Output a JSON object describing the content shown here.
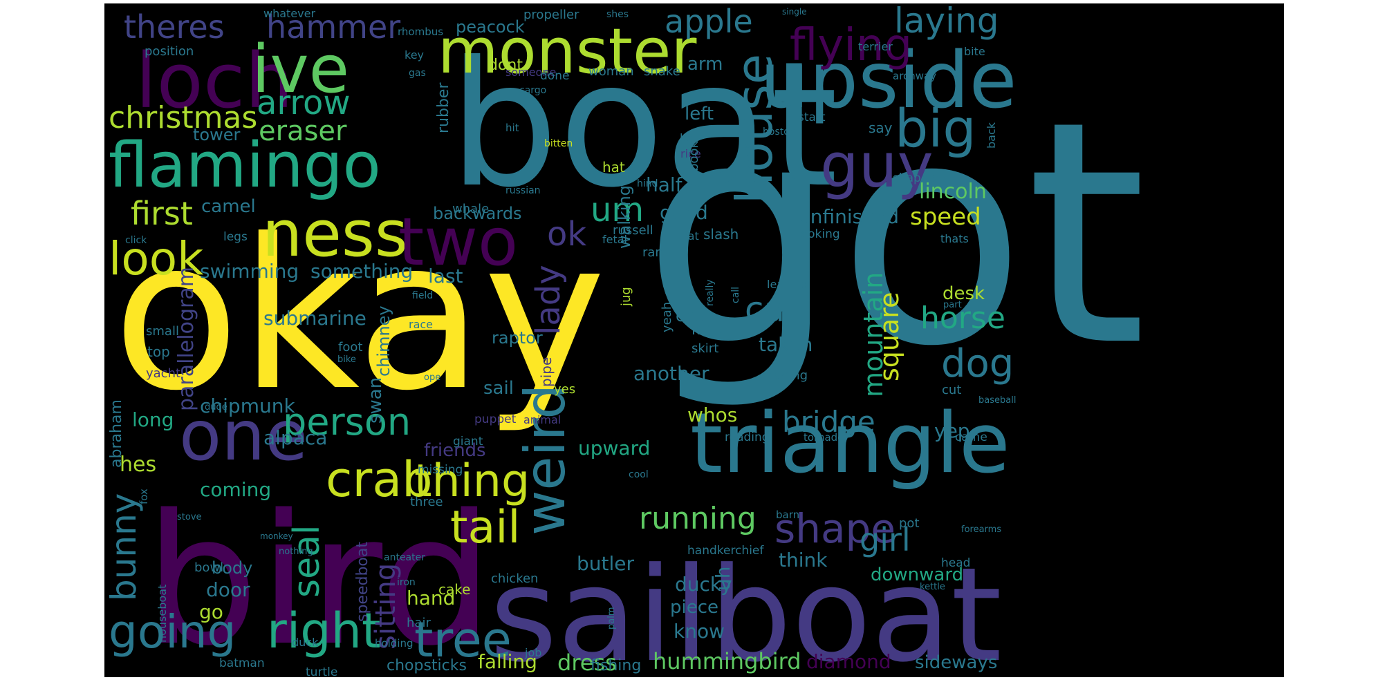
{
  "word_cloud": {
    "background": "#000000",
    "words": [
      {
        "text": "got",
        "color": "#2a788e"
      },
      {
        "text": "boat",
        "color": "#2a788e"
      },
      {
        "text": "okay",
        "color": "#fde725"
      },
      {
        "text": "bird",
        "color": "#440154"
      },
      {
        "text": "sailboat",
        "color": "#443a83"
      },
      {
        "text": "triangle",
        "color": "#2a788e"
      },
      {
        "text": "upside",
        "color": "#2a788e"
      },
      {
        "text": "monster",
        "color": "#addc30"
      },
      {
        "text": "flamingo",
        "color": "#22a884"
      },
      {
        "text": "loch",
        "color": "#440154"
      },
      {
        "text": "ive",
        "color": "#5ec962"
      },
      {
        "text": "ness",
        "color": "#c8e020"
      },
      {
        "text": "two",
        "color": "#440154"
      },
      {
        "text": "one",
        "color": "#443a83"
      },
      {
        "text": "guy",
        "color": "#443a83"
      },
      {
        "text": "house",
        "color": "#2a788e"
      },
      {
        "text": "weird",
        "color": "#2a788e"
      },
      {
        "text": "big",
        "color": "#2a788e"
      },
      {
        "text": "crab",
        "color": "#c8e020"
      },
      {
        "text": "thing",
        "color": "#c8e020"
      },
      {
        "text": "tail",
        "color": "#c8e020"
      },
      {
        "text": "right",
        "color": "#22a884"
      },
      {
        "text": "tree",
        "color": "#2a788e"
      },
      {
        "text": "going",
        "color": "#2a788e"
      },
      {
        "text": "person",
        "color": "#22a884"
      },
      {
        "text": "look",
        "color": "#c8e020"
      },
      {
        "text": "flying",
        "color": "#440154"
      },
      {
        "text": "apple",
        "color": "#2a788e"
      },
      {
        "text": "laying",
        "color": "#2a788e"
      },
      {
        "text": "theres",
        "color": "#414487"
      },
      {
        "text": "hammer",
        "color": "#414487"
      },
      {
        "text": "arrow",
        "color": "#22a884"
      },
      {
        "text": "christmas",
        "color": "#addc30"
      },
      {
        "text": "eraser",
        "color": "#5ec962"
      },
      {
        "text": "first",
        "color": "#addc30"
      },
      {
        "text": "um",
        "color": "#22a884"
      },
      {
        "text": "ok",
        "color": "#443a83"
      },
      {
        "text": "lady",
        "color": "#443a83"
      },
      {
        "text": "cat",
        "color": "#2a788e"
      },
      {
        "text": "dog",
        "color": "#2a788e"
      },
      {
        "text": "horse",
        "color": "#22a884"
      },
      {
        "text": "mountain",
        "color": "#22a884"
      },
      {
        "text": "square",
        "color": "#c8e020"
      },
      {
        "text": "shape",
        "color": "#443a83"
      },
      {
        "text": "running",
        "color": "#5ec962"
      },
      {
        "text": "girl",
        "color": "#2a788e"
      },
      {
        "text": "bridge",
        "color": "#2a788e"
      },
      {
        "text": "bunny",
        "color": "#2a788e"
      },
      {
        "text": "seal",
        "color": "#22a884"
      },
      {
        "text": "sitting",
        "color": "#443a83"
      },
      {
        "text": "dress",
        "color": "#5ec962"
      },
      {
        "text": "hummingbird",
        "color": "#5ec962"
      },
      {
        "text": "speed",
        "color": "#c8e020"
      },
      {
        "text": "unfinished",
        "color": "#2a788e"
      },
      {
        "text": "lincoln",
        "color": "#5ec962"
      },
      {
        "text": "good",
        "color": "#2a788e"
      },
      {
        "text": "half",
        "color": "#2a788e"
      },
      {
        "text": "walking",
        "color": "#2a788e"
      },
      {
        "text": "left",
        "color": "#2a788e"
      },
      {
        "text": "arm",
        "color": "#2a788e"
      },
      {
        "text": "camel",
        "color": "#2a788e"
      },
      {
        "text": "backwards",
        "color": "#2a788e"
      },
      {
        "text": "swimming",
        "color": "#2a788e"
      },
      {
        "text": "something",
        "color": "#2a788e"
      },
      {
        "text": "last",
        "color": "#2a788e"
      },
      {
        "text": "parallelogram",
        "color": "#414487"
      },
      {
        "text": "submarine",
        "color": "#2a788e"
      },
      {
        "text": "chimney",
        "color": "#2a788e"
      },
      {
        "text": "chipmunk",
        "color": "#2a788e"
      },
      {
        "text": "alpaca",
        "color": "#2a788e"
      },
      {
        "text": "friends",
        "color": "#443a83"
      },
      {
        "text": "long",
        "color": "#22a884"
      },
      {
        "text": "hes",
        "color": "#addc30"
      },
      {
        "text": "coming",
        "color": "#22a884"
      },
      {
        "text": "abraham",
        "color": "#2a788e"
      },
      {
        "text": "raptor",
        "color": "#2a788e"
      },
      {
        "text": "swan",
        "color": "#2a788e"
      },
      {
        "text": "sail",
        "color": "#2a788e"
      },
      {
        "text": "another",
        "color": "#2a788e"
      },
      {
        "text": "upward",
        "color": "#22a884"
      },
      {
        "text": "whos",
        "color": "#addc30"
      },
      {
        "text": "taken",
        "color": "#2a788e"
      },
      {
        "text": "desk",
        "color": "#addc30"
      },
      {
        "text": "yep",
        "color": "#2a788e"
      },
      {
        "text": "think",
        "color": "#2a788e"
      },
      {
        "text": "downward",
        "color": "#22a884"
      },
      {
        "text": "sideways",
        "color": "#2a788e"
      },
      {
        "text": "diamond",
        "color": "#440154"
      },
      {
        "text": "butler",
        "color": "#2a788e"
      },
      {
        "text": "ducky",
        "color": "#2a788e"
      },
      {
        "text": "piece",
        "color": "#2a788e"
      },
      {
        "text": "know",
        "color": "#2a788e"
      },
      {
        "text": "uh",
        "color": "#2a788e"
      },
      {
        "text": "hand",
        "color": "#addc30"
      },
      {
        "text": "speedboat",
        "color": "#414487"
      },
      {
        "text": "door",
        "color": "#2a788e"
      },
      {
        "text": "go",
        "color": "#addc30"
      },
      {
        "text": "body",
        "color": "#2a788e"
      },
      {
        "text": "falling",
        "color": "#addc30"
      },
      {
        "text": "fishing",
        "color": "#2a788e"
      },
      {
        "text": "chopsticks",
        "color": "#2a788e"
      },
      {
        "text": "peacock",
        "color": "#2a788e"
      },
      {
        "text": "propeller",
        "color": "#2a788e"
      },
      {
        "text": "dont",
        "color": "#addc30"
      },
      {
        "text": "rubber",
        "color": "#2a788e"
      },
      {
        "text": "tower",
        "color": "#2a788e"
      },
      {
        "text": "whale",
        "color": "#2a788e"
      },
      {
        "text": "position",
        "color": "#2a788e"
      },
      {
        "text": "key",
        "color": "#2a788e"
      },
      {
        "text": "whatever",
        "color": "#2a788e"
      },
      {
        "text": "rhombus",
        "color": "#2a788e"
      },
      {
        "text": "shes",
        "color": "#2a788e"
      },
      {
        "text": "single",
        "color": "#2a788e"
      },
      {
        "text": "someone",
        "color": "#443a83"
      },
      {
        "text": "done",
        "color": "#2a788e"
      },
      {
        "text": "woman",
        "color": "#2a788e"
      },
      {
        "text": "snake",
        "color": "#2a788e"
      },
      {
        "text": "gas",
        "color": "#2a788e"
      },
      {
        "text": "cargo",
        "color": "#2a788e"
      },
      {
        "text": "terrier",
        "color": "#2a788e"
      },
      {
        "text": "bite",
        "color": "#2a788e"
      },
      {
        "text": "archway",
        "color": "#2a788e"
      },
      {
        "text": "start",
        "color": "#2a788e"
      },
      {
        "text": "hit",
        "color": "#2a788e"
      },
      {
        "text": "bitten",
        "color": "#c8e020"
      },
      {
        "text": "let",
        "color": "#2a788e"
      },
      {
        "text": "rice",
        "color": "#443a83"
      },
      {
        "text": "say",
        "color": "#2a788e"
      },
      {
        "text": "boston",
        "color": "#2a788e"
      },
      {
        "text": "back",
        "color": "#2a788e"
      },
      {
        "text": "shaped",
        "color": "#2a788e"
      },
      {
        "text": "russian",
        "color": "#2a788e"
      },
      {
        "text": "hind",
        "color": "#2a788e"
      },
      {
        "text": "un",
        "color": "#2a788e"
      },
      {
        "text": "hat",
        "color": "#addc30"
      },
      {
        "text": "book",
        "color": "#2a788e"
      },
      {
        "text": "fetal",
        "color": "#2a788e"
      },
      {
        "text": "russell",
        "color": "#2a788e"
      },
      {
        "text": "fat",
        "color": "#2a788e"
      },
      {
        "text": "slash",
        "color": "#2a788e"
      },
      {
        "text": "looking",
        "color": "#2a788e"
      },
      {
        "text": "thats",
        "color": "#2a788e"
      },
      {
        "text": "click",
        "color": "#2a788e"
      },
      {
        "text": "legs",
        "color": "#2a788e"
      },
      {
        "text": "ram",
        "color": "#2a788e"
      },
      {
        "text": "really",
        "color": "#2a788e"
      },
      {
        "text": "call",
        "color": "#2a788e"
      },
      {
        "text": "leaning",
        "color": "#2a788e"
      },
      {
        "text": "part",
        "color": "#2a788e"
      },
      {
        "text": "field",
        "color": "#2a788e"
      },
      {
        "text": "jug",
        "color": "#addc30"
      },
      {
        "text": "yeah",
        "color": "#2a788e"
      },
      {
        "text": "cha",
        "color": "#2a788e"
      },
      {
        "text": "kind",
        "color": "#2a788e"
      },
      {
        "text": "skirt",
        "color": "#2a788e"
      },
      {
        "text": "race",
        "color": "#2a788e"
      },
      {
        "text": "pipe",
        "color": "#443a83"
      },
      {
        "text": "yes",
        "color": "#addc30"
      },
      {
        "text": "small",
        "color": "#2a788e"
      },
      {
        "text": "top",
        "color": "#2a788e"
      },
      {
        "text": "yacht",
        "color": "#443a83"
      },
      {
        "text": "foot",
        "color": "#2a788e"
      },
      {
        "text": "bike",
        "color": "#2a788e"
      },
      {
        "text": "ope",
        "color": "#2a788e"
      },
      {
        "text": "facing",
        "color": "#2a788e"
      },
      {
        "text": "cut",
        "color": "#2a788e"
      },
      {
        "text": "baseball",
        "color": "#2a788e"
      },
      {
        "text": "dude",
        "color": "#2a788e"
      },
      {
        "text": "puppet",
        "color": "#443a83"
      },
      {
        "text": "animal",
        "color": "#443a83"
      },
      {
        "text": "giant",
        "color": "#2a788e"
      },
      {
        "text": "missing",
        "color": "#2a788e"
      },
      {
        "text": "reading",
        "color": "#2a788e"
      },
      {
        "text": "tornado",
        "color": "#2a788e"
      },
      {
        "text": "came",
        "color": "#2a788e"
      },
      {
        "text": "cool",
        "color": "#2a788e"
      },
      {
        "text": "fox",
        "color": "#2a788e"
      },
      {
        "text": "three",
        "color": "#2a788e"
      },
      {
        "text": "stove",
        "color": "#2a788e"
      },
      {
        "text": "monkey",
        "color": "#2a788e"
      },
      {
        "text": "nothing",
        "color": "#2a788e"
      },
      {
        "text": "anteater",
        "color": "#2a788e"
      },
      {
        "text": "barn",
        "color": "#2a788e"
      },
      {
        "text": "pot",
        "color": "#2a788e"
      },
      {
        "text": "forearms",
        "color": "#2a788e"
      },
      {
        "text": "handkerchief",
        "color": "#2a788e"
      },
      {
        "text": "head",
        "color": "#2a788e"
      },
      {
        "text": "houseboat",
        "color": "#2a788e"
      },
      {
        "text": "bowl",
        "color": "#2a788e"
      },
      {
        "text": "iron",
        "color": "#2a788e"
      },
      {
        "text": "chicken",
        "color": "#2a788e"
      },
      {
        "text": "kettle",
        "color": "#2a788e"
      },
      {
        "text": "cake",
        "color": "#addc30"
      },
      {
        "text": "palm",
        "color": "#2a788e"
      },
      {
        "text": "hair",
        "color": "#2a788e"
      },
      {
        "text": "duck",
        "color": "#2a788e"
      },
      {
        "text": "batman",
        "color": "#2a788e"
      },
      {
        "text": "turtle",
        "color": "#2a788e"
      },
      {
        "text": "holding",
        "color": "#2a788e"
      },
      {
        "text": "job",
        "color": "#2a788e"
      }
    ]
  }
}
